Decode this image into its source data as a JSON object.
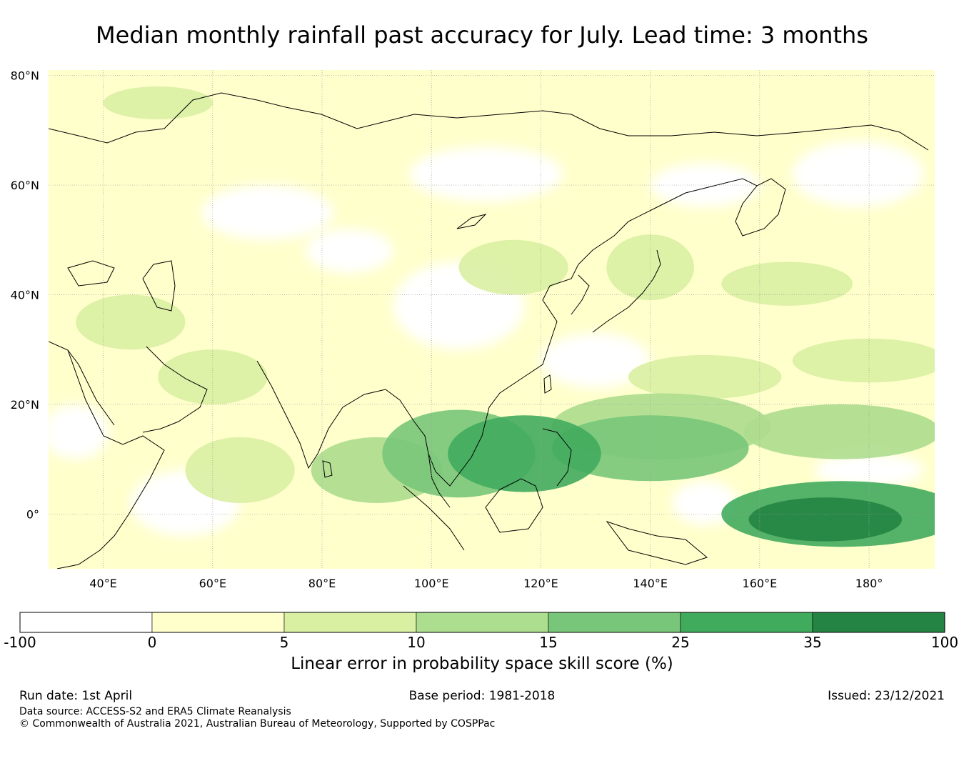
{
  "title": "Median monthly rainfall past accuracy for July. Lead time: 3 months",
  "map": {
    "lon_range": [
      30,
      192
    ],
    "lat_range": [
      -10,
      81
    ],
    "lat_ticks": [
      {
        "value": 80,
        "label": "80°N"
      },
      {
        "value": 60,
        "label": "60°N"
      },
      {
        "value": 40,
        "label": "40°N"
      },
      {
        "value": 20,
        "label": "20°N"
      },
      {
        "value": 0,
        "label": "0°"
      }
    ],
    "lon_ticks": [
      {
        "value": 40,
        "label": "40°E"
      },
      {
        "value": 60,
        "label": "60°E"
      },
      {
        "value": 80,
        "label": "80°E"
      },
      {
        "value": 100,
        "label": "100°E"
      },
      {
        "value": 120,
        "label": "120°E"
      },
      {
        "value": 140,
        "label": "140°E"
      },
      {
        "value": 160,
        "label": "160°E"
      },
      {
        "value": 180,
        "label": "180°"
      }
    ],
    "skill_regions": [
      {
        "lon": 65,
        "lat": 8,
        "rx": 10,
        "ry": 6,
        "level": 2
      },
      {
        "lon": 90,
        "lat": 8,
        "rx": 12,
        "ry": 6,
        "level": 3
      },
      {
        "lon": 105,
        "lat": 11,
        "rx": 14,
        "ry": 8,
        "level": 4
      },
      {
        "lon": 117,
        "lat": 11,
        "rx": 14,
        "ry": 7,
        "level": 5
      },
      {
        "lon": 140,
        "lat": 12,
        "rx": 18,
        "ry": 6,
        "level": 4
      },
      {
        "lon": 142,
        "lat": 16,
        "rx": 20,
        "ry": 6,
        "level": 3
      },
      {
        "lon": 175,
        "lat": 15,
        "rx": 18,
        "ry": 5,
        "level": 3
      },
      {
        "lon": 175,
        "lat": 0,
        "rx": 22,
        "ry": 6,
        "level": 5
      },
      {
        "lon": 172,
        "lat": -1,
        "rx": 14,
        "ry": 4,
        "level": 6
      },
      {
        "lon": 150,
        "lat": 25,
        "rx": 14,
        "ry": 4,
        "level": 2
      },
      {
        "lon": 180,
        "lat": 28,
        "rx": 14,
        "ry": 4,
        "level": 2
      },
      {
        "lon": 60,
        "lat": 25,
        "rx": 10,
        "ry": 5,
        "level": 2
      },
      {
        "lon": 45,
        "lat": 35,
        "rx": 10,
        "ry": 5,
        "level": 2
      },
      {
        "lon": 115,
        "lat": 45,
        "rx": 10,
        "ry": 5,
        "level": 2
      },
      {
        "lon": 140,
        "lat": 45,
        "rx": 8,
        "ry": 6,
        "level": 2
      },
      {
        "lon": 50,
        "lat": 75,
        "rx": 10,
        "ry": 3,
        "level": 2
      },
      {
        "lon": 165,
        "lat": 42,
        "rx": 12,
        "ry": 4,
        "level": 2
      }
    ],
    "no_skill_regions": [
      {
        "lon": 105,
        "lat": 38,
        "rx": 12,
        "ry": 8
      },
      {
        "lon": 70,
        "lat": 55,
        "rx": 12,
        "ry": 5
      },
      {
        "lon": 110,
        "lat": 62,
        "rx": 14,
        "ry": 5
      },
      {
        "lon": 178,
        "lat": 62,
        "rx": 12,
        "ry": 6
      },
      {
        "lon": 150,
        "lat": 60,
        "rx": 10,
        "ry": 4
      },
      {
        "lon": 35,
        "lat": 15,
        "rx": 6,
        "ry": 5
      },
      {
        "lon": 55,
        "lat": 2,
        "rx": 10,
        "ry": 6
      },
      {
        "lon": 130,
        "lat": 28,
        "rx": 10,
        "ry": 5
      },
      {
        "lon": 150,
        "lat": 2,
        "rx": 6,
        "ry": 4
      },
      {
        "lon": 180,
        "lat": 8,
        "rx": 10,
        "ry": 3
      },
      {
        "lon": 85,
        "lat": 48,
        "rx": 8,
        "ry": 4
      }
    ]
  },
  "colorbar": {
    "bounds": [
      "-100",
      "0",
      "5",
      "10",
      "15",
      "25",
      "35",
      "100"
    ],
    "colors": [
      "#ffffff",
      "#ffffcc",
      "#d9f0a3",
      "#addd8e",
      "#78c679",
      "#41ab5d",
      "#238443"
    ],
    "label": "Linear error in probability space skill score (%)"
  },
  "footer": {
    "run_date": "Run date: 1st April",
    "base_period": "Base period: 1981-2018",
    "issued": "Issued: 23/12/2021",
    "data_source": "Data source: ACCESS-S2 and ERA5 Climate Reanalysis",
    "copyright": "© Commonwealth of Australia 2021, Australian Bureau of Meteorology, Supported by COSPPac"
  }
}
